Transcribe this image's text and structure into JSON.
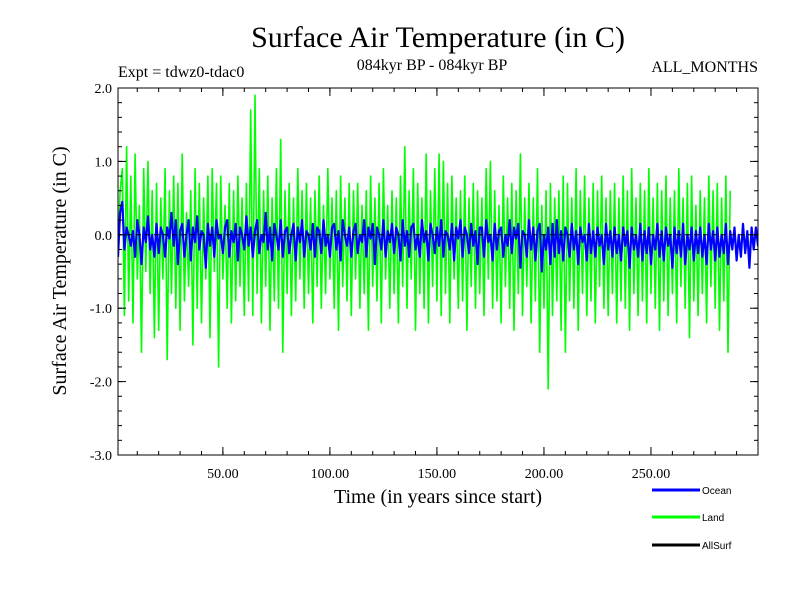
{
  "chart_data": {
    "type": "line",
    "title": "Surface Air Temperature (in C)",
    "subtitle_left": "Expt = tdwz0-tdac0",
    "subtitle_center": "084kyr BP - 084kyr BP",
    "subtitle_right": "ALL_MONTHS",
    "xlabel": "Time (in years since start)",
    "ylabel": "Surface Air Temperature (in C)",
    "xlim": [
      1,
      300
    ],
    "ylim": [
      -3.0,
      2.0
    ],
    "x_ticks": [
      50,
      100,
      150,
      200,
      250
    ],
    "x_tick_labels": [
      "50.00",
      "100.00",
      "150.00",
      "200.00",
      "250.00"
    ],
    "y_ticks": [
      -3.0,
      -2.0,
      -1.0,
      0.0,
      1.0,
      2.0
    ],
    "y_tick_labels": [
      "-3.0",
      "-2.0",
      "-1.0",
      "0.0",
      "1.0",
      "2.0"
    ],
    "zero_line": true,
    "grid": false,
    "legend_position": "bottom-right",
    "series": [
      {
        "name": "Land",
        "color": "#00ff00",
        "x_start": 1,
        "x_step": 1,
        "values": [
          -0.3,
          0.6,
          0.9,
          -1.1,
          1.2,
          -0.9,
          0.8,
          -1.2,
          1.1,
          -0.6,
          0.4,
          -1.6,
          0.9,
          -0.5,
          1.0,
          -0.8,
          0.6,
          -1.4,
          0.7,
          -1.3,
          0.5,
          -0.6,
          0.9,
          -1.7,
          0.6,
          -0.8,
          0.8,
          -1.0,
          0.7,
          -1.3,
          1.1,
          -0.9,
          0.3,
          -0.7,
          0.6,
          -1.5,
          0.9,
          -1.0,
          0.7,
          -1.2,
          0.5,
          -0.6,
          0.8,
          -1.4,
          0.9,
          -0.5,
          0.7,
          -1.8,
          0.8,
          -0.6,
          0.4,
          -1.0,
          0.7,
          -1.2,
          0.6,
          -0.9,
          0.8,
          -0.7,
          0.5,
          -1.1,
          0.7,
          -0.9,
          1.7,
          -1.1,
          1.9,
          -0.8,
          0.9,
          -1.2,
          0.6,
          -0.7,
          0.8,
          -1.3,
          0.5,
          -0.9,
          0.9,
          -1.0,
          1.3,
          -1.6,
          0.6,
          -0.8,
          0.7,
          -1.1,
          0.5,
          -0.9,
          0.9,
          -0.6,
          0.6,
          -1.0,
          0.7,
          -0.8,
          0.5,
          -1.2,
          0.6,
          -0.7,
          0.8,
          -1.0,
          0.4,
          -0.8,
          0.9,
          -0.6,
          0.5,
          -1.0,
          0.6,
          -1.3,
          0.8,
          -0.7,
          0.5,
          -0.9,
          0.7,
          -1.1,
          0.6,
          -0.6,
          0.7,
          -1.0,
          0.4,
          -0.8,
          0.6,
          -1.3,
          0.8,
          -0.7,
          0.5,
          -0.9,
          0.7,
          -1.2,
          0.9,
          -0.6,
          0.4,
          -1.0,
          0.6,
          -0.8,
          0.5,
          -1.2,
          0.8,
          -0.7,
          1.2,
          -1.0,
          0.6,
          -0.6,
          0.9,
          -1.3,
          0.7,
          -0.8,
          0.5,
          -1.0,
          1.1,
          -1.2,
          0.6,
          -0.7,
          0.9,
          -0.9,
          1.1,
          -1.1,
          1.0,
          -0.8,
          0.7,
          -1.2,
          0.8,
          -0.6,
          0.5,
          -1.0,
          0.6,
          -0.9,
          0.8,
          -1.3,
          0.5,
          -0.7,
          0.7,
          -1.0,
          0.6,
          -0.8,
          0.5,
          -1.1,
          0.9,
          -0.6,
          1.0,
          -1.0,
          0.6,
          -0.9,
          0.4,
          -1.2,
          0.8,
          -0.7,
          0.5,
          -1.0,
          0.7,
          -1.3,
          0.6,
          -0.8,
          1.1,
          -1.1,
          0.5,
          -0.7,
          0.7,
          -1.2,
          0.5,
          -0.9,
          0.9,
          -1.6,
          0.4,
          -1.0,
          0.6,
          -2.1,
          0.7,
          -1.1,
          0.5,
          -0.9,
          0.6,
          -1.3,
          0.8,
          -1.6,
          0.7,
          -0.9,
          0.5,
          -1.0,
          0.9,
          -1.3,
          0.6,
          -0.8,
          0.8,
          -1.1,
          0.5,
          -0.9,
          0.7,
          -1.2,
          0.6,
          -0.7,
          0.8,
          -1.0,
          0.5,
          -1.1,
          0.6,
          -0.8,
          0.7,
          -1.2,
          0.5,
          -0.9,
          0.8,
          -1.0,
          0.6,
          -1.3,
          0.9,
          -0.8,
          0.5,
          -1.1,
          0.7,
          -0.9,
          0.6,
          -1.2,
          0.9,
          -0.8,
          0.5,
          -1.0,
          0.7,
          -1.3,
          0.6,
          -0.9,
          0.8,
          -1.1,
          0.5,
          -0.8,
          0.6,
          -1.2,
          0.9,
          -0.7,
          0.5,
          -1.0,
          0.7,
          -1.4,
          0.8,
          -0.9,
          0.4,
          -1.1,
          0.6,
          -0.8,
          0.5,
          -1.2,
          0.8,
          -0.7,
          0.6,
          -1.0,
          0.7,
          -1.3,
          0.5,
          -0.9,
          0.8,
          -1.6,
          0.6
        ]
      },
      {
        "name": "Ocean",
        "color": "#0000ff",
        "x_start": 1,
        "x_step": 1,
        "values": [
          -0.3,
          0.3,
          0.45,
          -0.2,
          0.1,
          0.0,
          -0.15,
          0.05,
          -0.3,
          0.2,
          0.0,
          -0.4,
          0.1,
          -0.1,
          0.25,
          -0.2,
          0.0,
          -0.3,
          0.15,
          -0.25,
          0.1,
          0.0,
          -0.3,
          0.1,
          -0.05,
          0.3,
          -0.15,
          0.2,
          -0.4,
          0.05,
          0.15,
          -0.3,
          0.0,
          0.2,
          -0.35,
          0.1,
          -0.1,
          0.25,
          -0.2,
          0.05,
          0.0,
          -0.45,
          0.15,
          -0.15,
          0.1,
          -0.3,
          0.2,
          -0.05,
          0.0,
          -0.25,
          0.1,
          0.2,
          -0.3,
          0.05,
          -0.1,
          0.15,
          -0.35,
          0.1,
          0.0,
          -0.2,
          0.25,
          -0.15,
          0.1,
          -0.3,
          0.05,
          0.2,
          -0.25,
          0.0,
          -0.1,
          0.3,
          -0.2,
          0.1,
          -0.35,
          0.15,
          0.0,
          -0.2,
          0.2,
          -0.3,
          0.05,
          0.1,
          -0.25,
          0.0,
          0.15,
          -0.35,
          0.1,
          -0.1,
          0.2,
          -0.3,
          0.05,
          0.0,
          -0.2,
          0.15,
          -0.3,
          0.1,
          0.05,
          -0.25,
          0.2,
          -0.15,
          0.0,
          -0.3,
          0.1,
          0.15,
          -0.2,
          0.05,
          -0.35,
          0.2,
          0.0,
          -0.15,
          0.1,
          -0.3,
          0.05,
          0.15,
          -0.25,
          0.0,
          -0.1,
          0.2,
          -0.3,
          0.1,
          -0.05,
          0.15,
          -0.4,
          0.1,
          0.0,
          -0.2,
          0.2,
          -0.3,
          0.05,
          -0.1,
          0.15,
          -0.25,
          0.1,
          0.0,
          -0.35,
          0.2,
          -0.15,
          0.05,
          -0.3,
          0.1,
          0.15,
          -0.2,
          0.0,
          -0.3,
          0.2,
          -0.1,
          0.05,
          -0.35,
          0.15,
          0.0,
          -0.25,
          0.1,
          -0.15,
          0.2,
          -0.3,
          0.05,
          0.0,
          -0.2,
          0.15,
          -0.35,
          0.1,
          -0.05,
          0.2,
          -0.3,
          0.1,
          0.0,
          -0.25,
          0.15,
          -0.15,
          0.05,
          -0.4,
          0.1,
          0.1,
          -0.3,
          0.2,
          -0.1,
          0.0,
          -0.35,
          0.15,
          -0.2,
          0.05,
          0.1,
          -0.3,
          0.0,
          -0.15,
          0.2,
          -0.25,
          0.1,
          -0.05,
          0.15,
          -0.45,
          0.05,
          0.0,
          -0.3,
          0.2,
          -0.2,
          0.1,
          -0.35,
          0.05,
          0.15,
          -0.5,
          0.0,
          -0.2,
          0.1,
          -0.4,
          0.15,
          -0.3,
          0.2,
          -0.25,
          0.05,
          -0.35,
          0.1,
          0.0,
          -0.3,
          0.15,
          -0.2,
          0.05,
          -0.4,
          0.1,
          -0.1,
          0.0,
          -0.35,
          0.15,
          -0.25,
          0.05,
          -0.3,
          0.1,
          -0.15,
          0.0,
          -0.4,
          0.15,
          -0.2,
          0.05,
          -0.3,
          0.1,
          -0.25,
          0.0,
          -0.35,
          0.1,
          -0.15,
          0.05,
          -0.45,
          0.1,
          -0.2,
          0.0,
          -0.3,
          0.15,
          -0.35,
          0.05,
          -0.25,
          0.1,
          -0.4,
          0.0,
          -0.2,
          0.15,
          -0.3,
          0.05,
          -0.35,
          0.1,
          -0.15,
          0.0,
          -0.45,
          0.1,
          -0.25,
          0.05,
          -0.3,
          0.15,
          -0.4,
          0.0,
          -0.2,
          0.1,
          -0.35,
          0.05,
          -0.25,
          0.1,
          -0.3,
          0.0,
          -0.4,
          0.15,
          -0.2,
          0.05,
          -0.35,
          0.1,
          -0.3,
          0.0,
          -0.25,
          0.15,
          -0.4,
          0.05,
          -0.2,
          0.1,
          -0.35,
          0.0,
          -0.3,
          0.15,
          -0.25,
          0.05,
          -0.45,
          0.1,
          -0.2,
          0.1,
          -0.15,
          0.05,
          -0.1
        ]
      },
      {
        "name": "AllSurf",
        "color": "#000000",
        "x_start": 1,
        "x_step": 1,
        "values": []
      }
    ],
    "legend_order": [
      "Ocean",
      "Land",
      "AllSurf"
    ]
  }
}
